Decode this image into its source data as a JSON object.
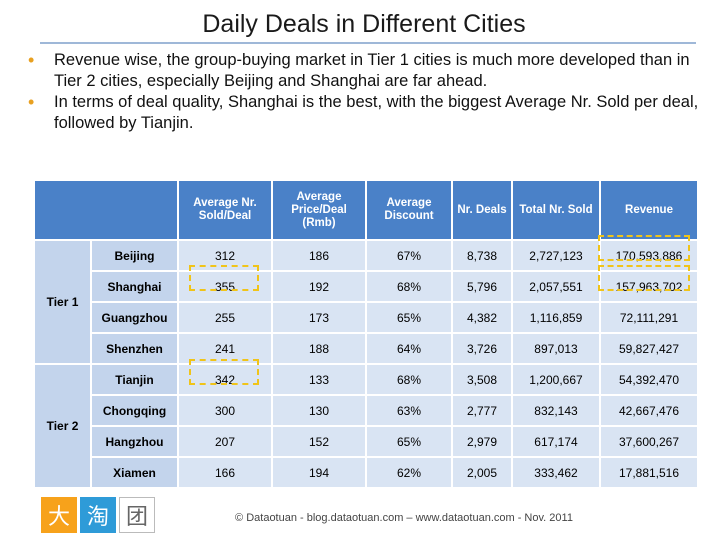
{
  "title": "Daily Deals in Different Cities",
  "bullets": [
    "Revenue wise, the group-buying market in Tier 1 cities is much more developed than in Tier 2 cities, especially Beijing and Shanghai are far ahead.",
    "In terms of deal quality, Shanghai is the best, with the biggest Average Nr. Sold per deal, followed by Tianjin."
  ],
  "table": {
    "headers": [
      "Average Nr. Sold/Deal",
      "Average Price/Deal (Rmb)",
      "Average Discount",
      "Nr. Deals",
      "Total Nr. Sold",
      "Revenue"
    ],
    "tiers": [
      "Tier 1",
      "Tier 2"
    ],
    "rows": [
      {
        "city": "Beijing",
        "avg_sold": "312",
        "avg_price": "186",
        "discount": "67%",
        "deals": "8,738",
        "total_sold": "2,727,123",
        "revenue": "170,593,886"
      },
      {
        "city": "Shanghai",
        "avg_sold": "355",
        "avg_price": "192",
        "discount": "68%",
        "deals": "5,796",
        "total_sold": "2,057,551",
        "revenue": "157,963,702"
      },
      {
        "city": "Guangzhou",
        "avg_sold": "255",
        "avg_price": "173",
        "discount": "65%",
        "deals": "4,382",
        "total_sold": "1,116,859",
        "revenue": "72,111,291"
      },
      {
        "city": "Shenzhen",
        "avg_sold": "241",
        "avg_price": "188",
        "discount": "64%",
        "deals": "3,726",
        "total_sold": "897,013",
        "revenue": "59,827,427"
      },
      {
        "city": "Tianjin",
        "avg_sold": "342",
        "avg_price": "133",
        "discount": "68%",
        "deals": "3,508",
        "total_sold": "1,200,667",
        "revenue": "54,392,470"
      },
      {
        "city": "Chongqing",
        "avg_sold": "300",
        "avg_price": "130",
        "discount": "63%",
        "deals": "2,777",
        "total_sold": "832,143",
        "revenue": "42,667,476"
      },
      {
        "city": "Hangzhou",
        "avg_sold": "207",
        "avg_price": "152",
        "discount": "65%",
        "deals": "2,979",
        "total_sold": "617,174",
        "revenue": "37,600,267"
      },
      {
        "city": "Xiamen",
        "avg_sold": "166",
        "avg_price": "194",
        "discount": "62%",
        "deals": "2,005",
        "total_sold": "333,462",
        "revenue": "17,881,516"
      }
    ]
  },
  "logo": [
    "大",
    "淘",
    "团"
  ],
  "colors": {
    "header": "#4a81c8",
    "cell": "#d9e4f3",
    "label_cell": "#c3d4ec",
    "highlight": "#f0c419",
    "bullet": "#e8a020"
  },
  "footer": "© Dataotuan  - blog.dataotuan.com – www.dataotuan.com - Nov. 2011"
}
